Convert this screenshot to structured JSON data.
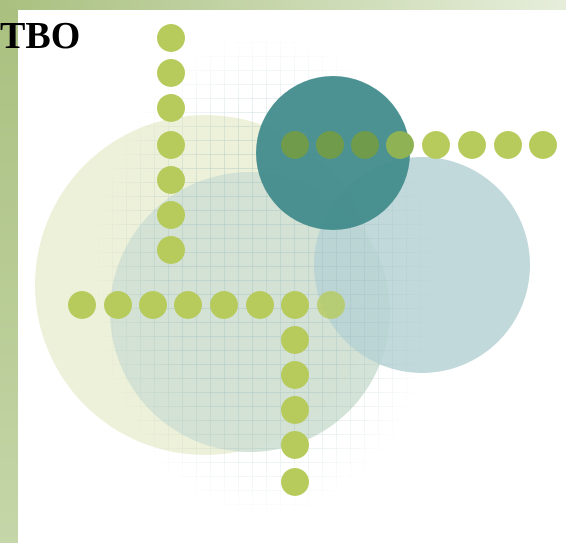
{
  "title": "ТВО"
}
